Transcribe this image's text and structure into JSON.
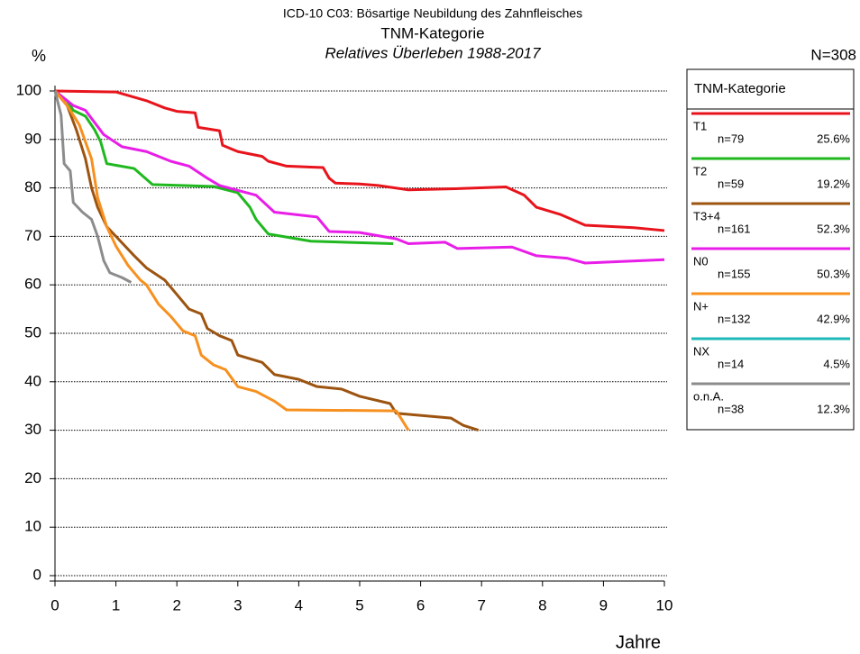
{
  "chart_data": {
    "type": "line",
    "title": "ICD-10 C03: Bösartige Neubildung des Zahnfleisches",
    "subtitle": "TNM-Kategorie",
    "caption": "Relatives Überleben 1988-2017",
    "y_label": "%",
    "x_label": "Jahre",
    "total": "N=308",
    "legend_title": "TNM-Kategorie",
    "xlim": [
      0,
      10
    ],
    "xticks": [
      0,
      1,
      2,
      3,
      4,
      5,
      6,
      7,
      8,
      9,
      10
    ],
    "ylim": [
      0,
      100
    ],
    "yticks": [
      0,
      10,
      20,
      30,
      40,
      50,
      60,
      70,
      80,
      90,
      100
    ],
    "grid": true,
    "series": [
      {
        "name": "T1",
        "color": "#e8141c",
        "n_label": "n=79",
        "share_label": "25.6%",
        "x": [
          0,
          1,
          1.5,
          1.8,
          2,
          2.3,
          2.35,
          2.7,
          2.75,
          3,
          3.4,
          3.5,
          3.8,
          4.2,
          4.4,
          4.5,
          4.6,
          5,
          5.3,
          5.8,
          6.5,
          7.4,
          7.7,
          7.9,
          8.3,
          8.7,
          9.5,
          10
        ],
        "values": [
          100,
          99.8,
          98,
          96.5,
          95.8,
          95.5,
          92.5,
          91.8,
          88.8,
          87.5,
          86.5,
          85.5,
          84.5,
          84.3,
          84.2,
          82,
          81,
          80.8,
          80.5,
          79.6,
          79.8,
          80.2,
          78.5,
          76,
          74.5,
          72.3,
          71.8,
          71.2
        ]
      },
      {
        "name": "T2",
        "color": "#1fb81f",
        "n_label": "n=59",
        "share_label": "19.2%",
        "x": [
          0,
          0.2,
          0.3,
          0.5,
          0.65,
          0.75,
          0.85,
          1.3,
          1.6,
          2.6,
          3,
          3.2,
          3.3,
          3.5,
          4.2,
          5.55
        ],
        "values": [
          100,
          98,
          96,
          94.8,
          92,
          89.5,
          85,
          84,
          80.7,
          80.3,
          79,
          76,
          73.5,
          70.5,
          69,
          68.5
        ]
      },
      {
        "name": "T3+4",
        "color": "#9c5410",
        "n_label": "n=161",
        "share_label": "52.3%",
        "x": [
          0,
          0.2,
          0.35,
          0.5,
          0.6,
          0.7,
          0.85,
          1,
          1.3,
          1.5,
          1.8,
          2,
          2.2,
          2.4,
          2.5,
          2.7,
          2.9,
          3,
          3.4,
          3.6,
          4,
          4.3,
          4.7,
          5,
          5.5,
          5.6,
          6.5,
          6.7,
          6.95
        ],
        "values": [
          100,
          97,
          92,
          86,
          80,
          76,
          72,
          70,
          66,
          63.5,
          61,
          58,
          55,
          54,
          51,
          49.5,
          48.5,
          45.5,
          44,
          41.5,
          40.5,
          39,
          38.5,
          37,
          35.5,
          33.5,
          32.5,
          31,
          30
        ]
      },
      {
        "name": "N0",
        "color": "#e81ee8",
        "n_label": "n=155",
        "share_label": "50.3%",
        "x": [
          0,
          0.3,
          0.5,
          0.8,
          1.1,
          1.5,
          1.9,
          2.2,
          2.5,
          2.7,
          3,
          3.3,
          3.6,
          4.3,
          4.5,
          5,
          5.6,
          5.8,
          6.4,
          6.6,
          7.5,
          7.9,
          8.4,
          8.7,
          10
        ],
        "values": [
          100,
          97,
          96,
          91,
          88.5,
          87.5,
          85.5,
          84.5,
          82,
          80.5,
          79.5,
          78.5,
          75,
          74,
          71,
          70.8,
          69.5,
          68.5,
          68.8,
          67.5,
          67.8,
          66,
          65.5,
          64.5,
          65.2
        ]
      },
      {
        "name": "N+",
        "color": "#f7901e",
        "n_label": "n=132",
        "share_label": "42.9%",
        "x": [
          0,
          0.2,
          0.4,
          0.6,
          0.7,
          0.85,
          1,
          1.2,
          1.4,
          1.5,
          1.7,
          1.9,
          2.1,
          2.3,
          2.4,
          2.6,
          2.8,
          3,
          3.3,
          3.6,
          3.8,
          5.6,
          5.7,
          5.8
        ],
        "values": [
          100,
          97,
          93,
          86,
          78,
          72,
          68,
          64,
          61,
          60,
          56,
          53.5,
          50.5,
          49.5,
          45.5,
          43.5,
          42.5,
          39,
          38,
          36,
          34.2,
          34,
          32,
          30
        ]
      },
      {
        "name": "NX",
        "color": "#1fb8b8",
        "n_label": "n=14",
        "share_label": "4.5%",
        "x": [],
        "values": []
      },
      {
        "name": "o.n.A.",
        "color": "#8c8c8c",
        "n_label": "n=38",
        "share_label": "12.3%",
        "x": [
          0,
          0.1,
          0.15,
          0.25,
          0.3,
          0.45,
          0.6,
          0.7,
          0.8,
          0.9,
          1.1,
          1.25
        ],
        "values": [
          100,
          95,
          85,
          83.5,
          77,
          75,
          73.5,
          70,
          65,
          62.5,
          61.5,
          60.5
        ]
      }
    ]
  }
}
